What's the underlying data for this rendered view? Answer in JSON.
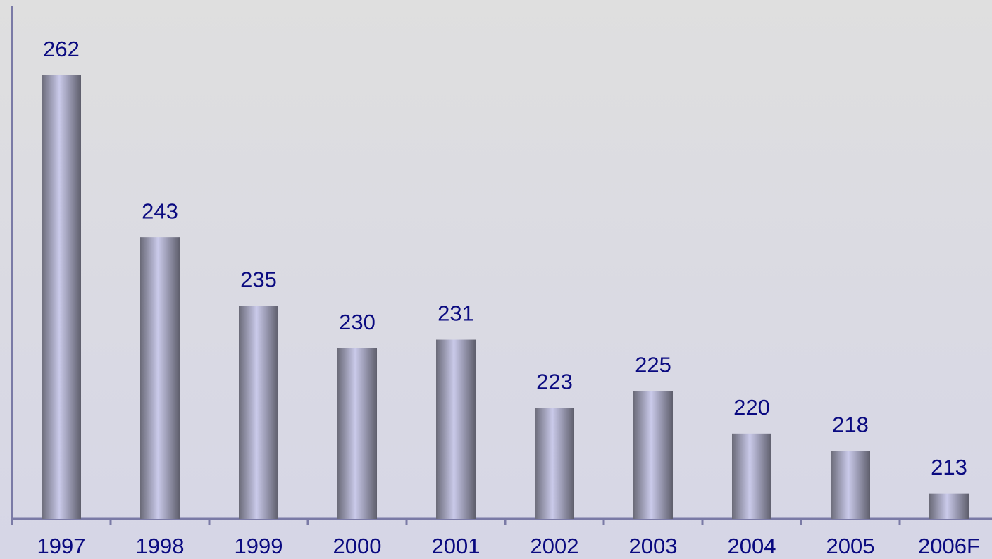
{
  "chart_data": {
    "type": "bar",
    "categories": [
      "1997",
      "1998",
      "1999",
      "2000",
      "2001",
      "2002",
      "2003",
      "2004",
      "2005",
      "2006F"
    ],
    "values": [
      262,
      243,
      235,
      230,
      231,
      223,
      225,
      220,
      218,
      213
    ],
    "color": "#cacaea",
    "ylim": [
      210,
      270
    ],
    "grid": false
  }
}
